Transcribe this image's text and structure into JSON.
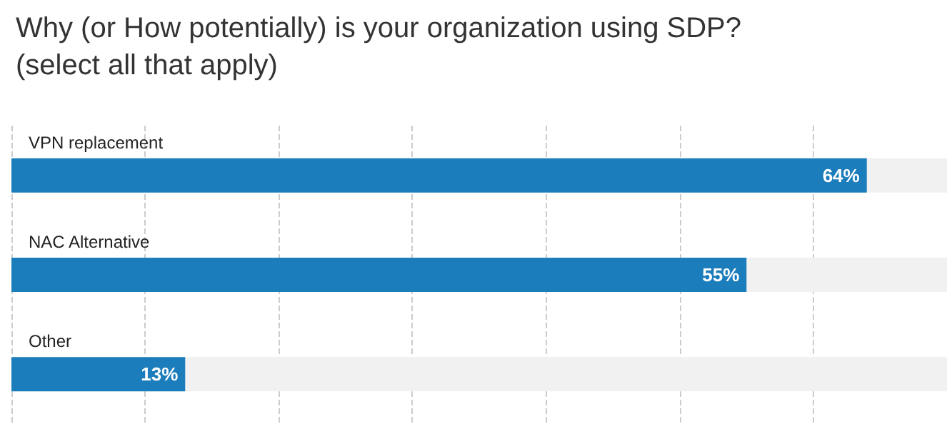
{
  "chart_data": {
    "type": "bar",
    "orientation": "horizontal",
    "title": "Why (or How potentially) is your organization using SDP? (select all that apply)",
    "categories": [
      "VPN replacement",
      "NAC Alternative",
      "Other"
    ],
    "values": [
      64,
      55,
      13
    ],
    "color": "#1b7dbb",
    "data_labels": true,
    "value_labels": [
      "64%",
      "55%",
      "13%"
    ],
    "grid": "x"
  }
}
